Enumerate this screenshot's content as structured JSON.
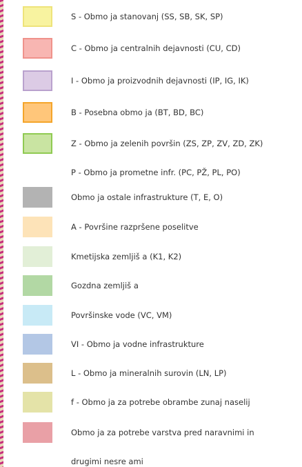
{
  "legend": {
    "items": [
      {
        "lines": [
          "S - Obmo ja stanovanj (SS, SB, SK, SP)"
        ],
        "color": "#f8f3a0",
        "border": "#eee37a"
      },
      {
        "lines": [
          "C - Obmo ja centralnih dejavnosti (CU, CD)"
        ],
        "color": "#f8b6b2",
        "border": "#ef928b"
      },
      {
        "lines": [
          "I - Obmo ja proizvodnih dejavnosti (IP, IG, IK)"
        ],
        "color": "#dccbe5",
        "border": "#b9a1cd"
      },
      {
        "lines": [
          "B - Posebna obmo ja (BT, BD, BC)"
        ],
        "color": "#ffc67a",
        "border": "#f4a52a"
      },
      {
        "lines": [
          "Z - Obmo ja zelenih površin (ZS, ZP, ZV, ZD, ZK)"
        ],
        "color": "#c9e4a2",
        "border": "#8fca52"
      },
      {
        "lines": [
          "P - Obmo ja prometne infr. (PC, PŽ, PL, PO)"
        ],
        "color": null,
        "border": null
      },
      {
        "lines": [
          "Obmo ja ostale infrastrukture (T, E, O)"
        ],
        "color": "#b3b3b3",
        "border": null
      },
      {
        "lines": [
          "A - Površine razpršene poselitve"
        ],
        "color": "#fde3b8",
        "border": null
      },
      {
        "lines": [
          "Kmetijska zemljiš a (K1, K2)"
        ],
        "color": "#e2efd7",
        "border": null
      },
      {
        "lines": [
          "Gozdna zemljiš a"
        ],
        "color": "#b2d8a4",
        "border": null
      },
      {
        "lines": [
          "Površinske vode (VC, VM)"
        ],
        "color": "#c8eaf6",
        "border": null
      },
      {
        "lines": [
          "VI - Obmo ja vodne infrastrukture"
        ],
        "color": "#b3c7e5",
        "border": null
      },
      {
        "lines": [
          "L - Obmo ja mineralnih surovin (LN, LP)"
        ],
        "color": "#dcbf8b",
        "border": null
      },
      {
        "lines": [
          "f - Obmo ja za potrebe obrambe zunaj naselij"
        ],
        "color": "#e4e3a8",
        "border": null
      },
      {
        "lines": [
          "Obmo ja za potrebe varstva pred naravnimi in",
          "drugimi nesre ami"
        ],
        "color": "#e9a0a6",
        "border": null
      }
    ]
  }
}
